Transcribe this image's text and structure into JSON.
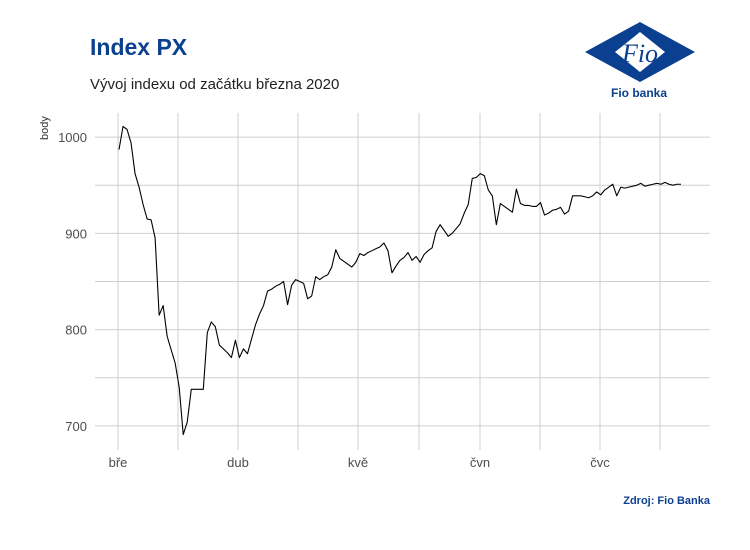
{
  "header": {
    "title": "Index PX",
    "subtitle": "Vývoj indexu od začátku března 2020"
  },
  "logo": {
    "mark_text": "Fio",
    "caption": "Fio banka",
    "color": "#0b3f8f"
  },
  "footer": {
    "source": "Zdroj: Fio Banka"
  },
  "chart_data": {
    "type": "line",
    "title": "Index PX",
    "subtitle": "Vývoj indexu od začátku března 2020",
    "ylabel": "body",
    "xlabel": "",
    "x_tick_labels": [
      "bře",
      "dub",
      "kvě",
      "čvn",
      "čvc"
    ],
    "y_ticks": [
      700,
      800,
      900,
      1000
    ],
    "ylim": [
      675,
      1025
    ],
    "grid": true,
    "line_color": "#000000",
    "series": [
      {
        "x": [
          0,
          1,
          2,
          3,
          4,
          5,
          6,
          7,
          8,
          9,
          10,
          11,
          12,
          13,
          14,
          15,
          16,
          17,
          18,
          19,
          20,
          21,
          22,
          23,
          24,
          25,
          26,
          27,
          28,
          29,
          30,
          31,
          32,
          33,
          34,
          35,
          36,
          37,
          38,
          39,
          40,
          41,
          42,
          43,
          44,
          45,
          46,
          47,
          48,
          49,
          50,
          51,
          52,
          53,
          54,
          55,
          56,
          57,
          58,
          59,
          60,
          61,
          62,
          63,
          64,
          65,
          66,
          67,
          68,
          69,
          70,
          71,
          72,
          73,
          74,
          75,
          76,
          77,
          78,
          79,
          80,
          81,
          82,
          83,
          84,
          85,
          86,
          87,
          88,
          89,
          90,
          91,
          92,
          93,
          94,
          95,
          96,
          97,
          98,
          99,
          100,
          101,
          102,
          103,
          104,
          105,
          106,
          107,
          108,
          109,
          110,
          111,
          112,
          113,
          114,
          115,
          116,
          117,
          118,
          119,
          120,
          121,
          122,
          123,
          124,
          125,
          126,
          127,
          128,
          129,
          130,
          131,
          132,
          133,
          134,
          135,
          136,
          137,
          138,
          139,
          140
        ],
        "values": [
          987,
          1011,
          1008,
          994,
          962,
          948,
          930,
          915,
          914,
          895,
          815,
          825,
          793,
          779,
          765,
          740,
          691,
          704,
          738,
          738,
          738,
          738,
          797,
          808,
          803,
          784,
          780,
          776,
          771,
          789,
          771,
          780,
          775,
          790,
          805,
          816,
          825,
          840,
          842,
          845,
          847,
          850,
          826,
          846,
          852,
          850,
          848,
          832,
          835,
          855,
          852,
          855,
          857,
          865,
          883,
          874,
          871,
          868,
          865,
          870,
          879,
          877,
          880,
          882,
          884,
          886,
          890,
          882,
          859,
          866,
          872,
          875,
          880,
          872,
          876,
          870,
          878,
          882,
          885,
          902,
          909,
          903,
          897,
          900,
          905,
          910,
          921,
          930,
          957,
          958,
          962,
          960,
          945,
          939,
          909,
          931,
          928,
          925,
          922,
          946,
          931,
          929,
          929,
          928,
          928,
          932,
          919,
          921,
          924,
          925,
          927,
          920,
          923,
          939,
          939,
          939,
          938,
          937,
          939,
          943,
          940,
          945,
          948,
          951,
          939,
          948,
          947,
          948,
          949,
          950,
          952,
          949,
          950,
          951,
          952,
          951,
          953,
          951,
          950,
          951,
          951
        ]
      }
    ]
  }
}
